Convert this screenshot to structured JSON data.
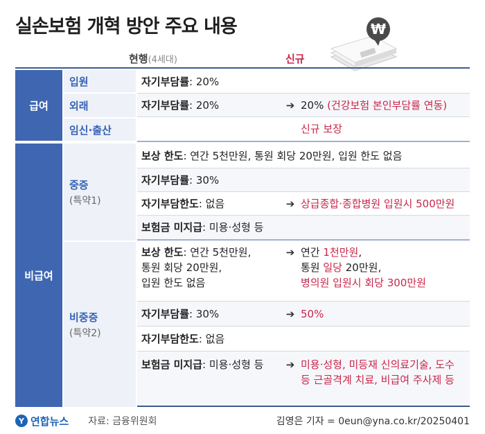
{
  "title": "실손보험 개혁 방안 주요 내용",
  "columns": {
    "current": "현행",
    "current_sub": "(4세대)",
    "new": "신규"
  },
  "money_symbol": "₩",
  "sections": {
    "benefit": {
      "label": "급여",
      "rows": {
        "inpatient": {
          "sub": "입원",
          "cur_key": "자기부담률",
          "cur_val": ": 20%"
        },
        "outpatient": {
          "sub": "외래",
          "cur_key": "자기부담률",
          "cur_val": ": 20%",
          "arrow": "➔",
          "new_plain": "20% ",
          "new_text": "(건강보험 본인부담률 연동)"
        },
        "pregnancy": {
          "sub": "임신·출산",
          "new_text": "신규 보장"
        }
      }
    },
    "nonbenefit": {
      "label": "비급여",
      "severe": {
        "sub": "중증",
        "note": "(특약1)",
        "r1": {
          "cur_key": "보상 한도",
          "cur_val": ": 연간 5천만원, 통원 회당 20만원, 입원 한도 없음"
        },
        "r2": {
          "cur_key": "자기부담률",
          "cur_val": ": 30%"
        },
        "r3": {
          "cur_key": "자기부담한도",
          "cur_val": ": 없음",
          "arrow": "➔",
          "new_text": "상급종합·종합병원 입원시 500만원"
        },
        "r4": {
          "cur_key": "보험금 미지급",
          "cur_val": ": 미용·성형 등"
        }
      },
      "nonsevere": {
        "sub": "비중증",
        "note": "(특약2)",
        "r1": {
          "cur_key": "보상 한도",
          "cur_val1": ": 연간 5천만원,",
          "cur_val2": "통원 회당 20만원,",
          "cur_val3": "입원 한도 없음",
          "arrow": "➔",
          "new_a1": "연간 ",
          "new_b1": "1천만원",
          "new_c1": ",",
          "new_a2": "통원 ",
          "new_b2": "일당",
          "new_c2": " 20만원,",
          "new_l3": "병의원 입원시 회당 300만원"
        },
        "r2": {
          "cur_key": "자기부담률",
          "cur_val": ": 30%",
          "arrow": "➔",
          "new_text": "50%"
        },
        "r3": {
          "cur_key": "자기부담한도",
          "cur_val": ": 없음"
        },
        "r4": {
          "cur_key": "보험금 미지급",
          "cur_val": ": 미용·성형 등",
          "arrow": "➔",
          "new_l1": "미용·성형, 미등재 신의료기술, 도수",
          "new_l2": "등 근골격계 치료, 비급여 주사제 등"
        }
      }
    }
  },
  "footer": {
    "logo_text": "연합뉴스",
    "source": "자료: 금융위원회",
    "credit": "김영은 기자 = 0eun@yna.co.kr/20250401"
  }
}
